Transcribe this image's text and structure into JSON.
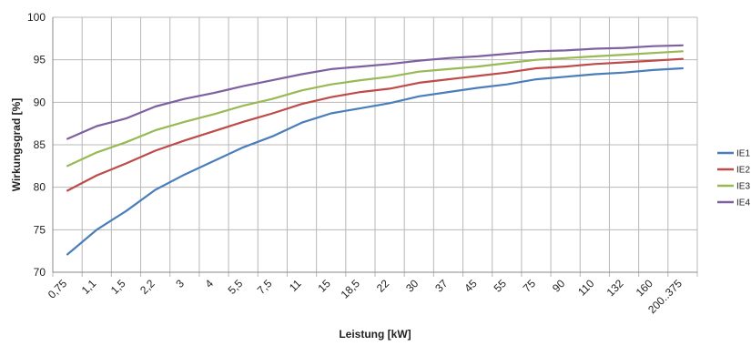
{
  "chart_data": {
    "type": "line",
    "title": "",
    "xlabel": "Leistung [kW]",
    "ylabel": "Wirkungsgrad [%]",
    "ylim": [
      70,
      100
    ],
    "yticks": [
      70,
      75,
      80,
      85,
      90,
      95,
      100
    ],
    "grid": true,
    "legend_position": "right",
    "categories": [
      "0,75",
      "1,1",
      "1,5",
      "2,2",
      "3",
      "4",
      "5,5",
      "7,5",
      "11",
      "15",
      "18,5",
      "22",
      "30",
      "37",
      "45",
      "55",
      "75",
      "90",
      "110",
      "132",
      "160",
      "200..375"
    ],
    "series": [
      {
        "name": "IE1",
        "color": "#4a7ebb",
        "values": [
          72.1,
          75.0,
          77.2,
          79.7,
          81.5,
          83.1,
          84.7,
          86.0,
          87.6,
          88.7,
          89.3,
          89.9,
          90.7,
          91.2,
          91.7,
          92.1,
          92.7,
          93.0,
          93.3,
          93.5,
          93.8,
          94.0
        ]
      },
      {
        "name": "IE2",
        "color": "#be4b48",
        "values": [
          79.6,
          81.4,
          82.8,
          84.3,
          85.5,
          86.6,
          87.7,
          88.7,
          89.8,
          90.6,
          91.2,
          91.6,
          92.3,
          92.7,
          93.1,
          93.5,
          94.0,
          94.2,
          94.5,
          94.7,
          94.9,
          95.1
        ]
      },
      {
        "name": "IE3",
        "color": "#98b954",
        "values": [
          82.5,
          84.1,
          85.3,
          86.7,
          87.7,
          88.6,
          89.6,
          90.4,
          91.4,
          92.1,
          92.6,
          93.0,
          93.6,
          93.9,
          94.2,
          94.6,
          95.0,
          95.2,
          95.4,
          95.6,
          95.8,
          96.0
        ]
      },
      {
        "name": "IE4",
        "color": "#7d60a0",
        "values": [
          85.7,
          87.2,
          88.1,
          89.5,
          90.4,
          91.1,
          91.9,
          92.6,
          93.3,
          93.9,
          94.2,
          94.5,
          94.9,
          95.2,
          95.4,
          95.7,
          96.0,
          96.1,
          96.3,
          96.4,
          96.6,
          96.7
        ]
      }
    ]
  }
}
